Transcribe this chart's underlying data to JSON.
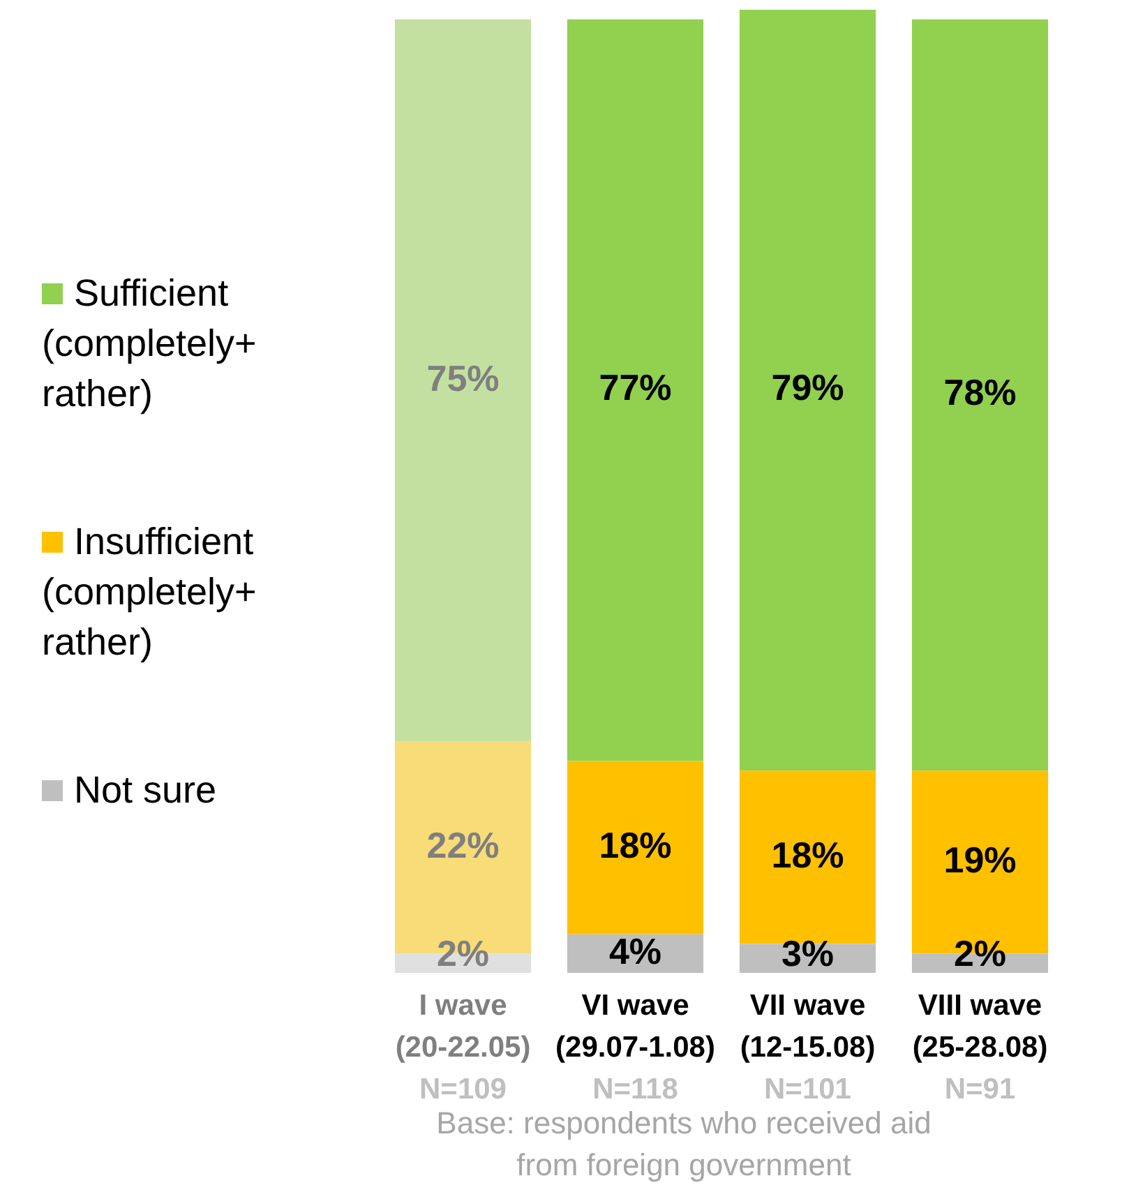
{
  "chart_data": {
    "type": "bar",
    "stacked": true,
    "legend": "left",
    "categories": [
      "I wave\n(20-22.05)\nN=109",
      "VI wave\n(29.07-1.08)\nN=118",
      "VII wave\n(12-15.08)\nN=101",
      "VIII wave\n(25-28.08)\nN=91"
    ],
    "series": [
      {
        "name": "Not sure",
        "color": "#bfbfbf",
        "colors": [
          "#e0e0e0",
          "#bfbfbf",
          "#bfbfbf",
          "#bfbfbf"
        ],
        "values": [
          2,
          4,
          3,
          2
        ],
        "value_labels": [
          "2%",
          "4%",
          "3%",
          "2%"
        ]
      },
      {
        "name": "Insufficient (completely+ rather)",
        "color": "#ffc000",
        "colors": [
          "#f8dc78",
          "#ffc000",
          "#ffc000",
          "#ffc000"
        ],
        "values": [
          22,
          18,
          18,
          19
        ],
        "value_labels": [
          "22%",
          "18%",
          "18%",
          "19%"
        ]
      },
      {
        "name": "Sufficient (completely+ rather)",
        "color": "#92d050",
        "colors": [
          "#c4e0a0",
          "#92d050",
          "#92d050",
          "#92d050"
        ],
        "values": [
          75,
          77,
          79,
          78
        ],
        "value_labels": [
          "75%",
          "77%",
          "79%",
          "78%"
        ]
      }
    ],
    "annotations": [
      "Base: respondents who received aid from foreign government"
    ]
  }
}
